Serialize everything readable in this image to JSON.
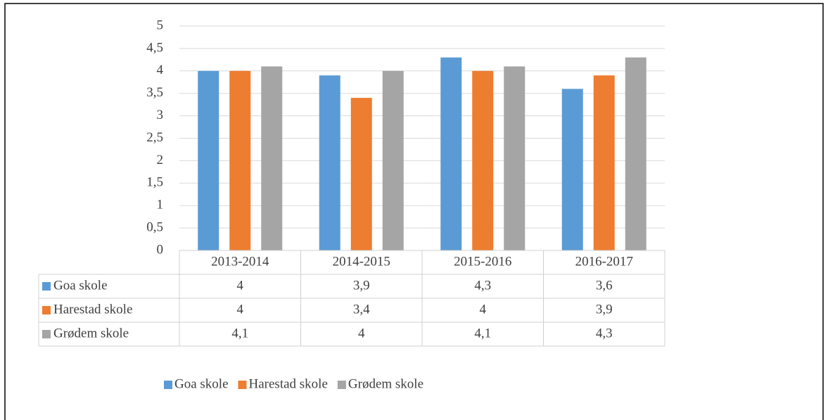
{
  "chart_data": {
    "type": "bar",
    "categories": [
      "2013-2014",
      "2014-2015",
      "2015-2016",
      "2016-2017"
    ],
    "series": [
      {
        "name": "Goa skole",
        "color": "#5b9bd5",
        "values": [
          4,
          3.9,
          4.3,
          3.6
        ],
        "value_labels": [
          "4",
          "3,9",
          "4,3",
          "3,6"
        ]
      },
      {
        "name": "Harestad skole",
        "color": "#ed7d31",
        "values": [
          4,
          3.4,
          4,
          3.9
        ],
        "value_labels": [
          "4",
          "3,4",
          "4",
          "3,9"
        ]
      },
      {
        "name": "Grødem skole",
        "color": "#a5a5a5",
        "values": [
          4.1,
          4,
          4.1,
          4.3
        ],
        "value_labels": [
          "4,1",
          "4",
          "4,1",
          "4,3"
        ]
      }
    ],
    "ylim": [
      0,
      5
    ],
    "yticks": [
      0,
      {
        "value": 0.5,
        "label": "0,5"
      },
      1,
      {
        "value": 1.5,
        "label": "1,5"
      },
      2,
      {
        "value": 2.5,
        "label": "2,5"
      },
      3,
      {
        "value": 3.5,
        "label": "3,5"
      },
      4,
      {
        "value": 4.5,
        "label": "4,5"
      },
      5
    ],
    "grid": true,
    "legend": "bottom"
  }
}
